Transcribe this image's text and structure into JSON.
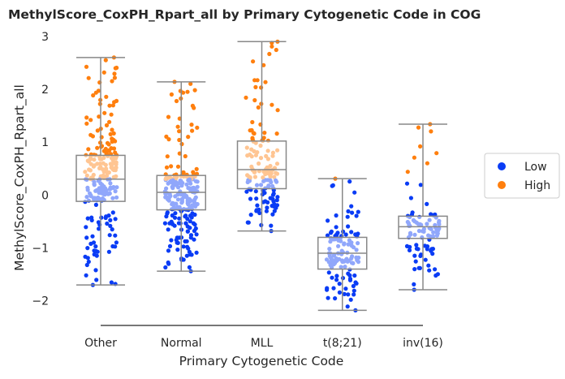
{
  "chart_data": {
    "type": "box+strip",
    "title": "MethylScore_CoxPH_Rpart_all by Primary Cytogenetic Code in COG",
    "xlabel": "Primary Cytogenetic Code",
    "ylabel": "MethylScore_CoxPH_Rpart_all",
    "categories": [
      "Other",
      "Normal",
      "MLL",
      "t(8;21)",
      "inv(16)"
    ],
    "ylim": [
      -2.45,
      3.05
    ],
    "yticks": [
      -2,
      -1,
      0,
      1,
      2,
      3
    ],
    "grid": false,
    "legend_position": "right",
    "legend": [
      {
        "label": "Low",
        "color": "#0a3cf5"
      },
      {
        "label": "High",
        "color": "#ff7f0e"
      }
    ],
    "box_color": "#888888",
    "boxes": [
      {
        "category": "Other",
        "whisker_low": -1.7,
        "q1": -0.12,
        "median": 0.3,
        "q3": 0.75,
        "whisker_high": 2.6
      },
      {
        "category": "Normal",
        "whisker_low": -1.44,
        "q1": -0.28,
        "median": 0.05,
        "q3": 0.37,
        "whisker_high": 2.14
      },
      {
        "category": "MLL",
        "whisker_low": -0.68,
        "q1": 0.12,
        "median": 0.48,
        "q3": 1.02,
        "whisker_high": 2.9
      },
      {
        "category": "t(8;21)",
        "whisker_low": -2.18,
        "q1": -1.4,
        "median": -1.1,
        "q3": -0.8,
        "whisker_high": 0.31
      },
      {
        "category": "inv(16)",
        "whisker_low": -1.79,
        "q1": -0.82,
        "median": -0.6,
        "q3": -0.4,
        "whisker_high": 1.34
      }
    ],
    "points_threshold": 0.3,
    "points_spec": [
      {
        "category": "Other",
        "n": 230,
        "min": -1.7,
        "max": 2.6,
        "q1": -0.12,
        "median": 0.3,
        "q3": 0.75,
        "seed": 11
      },
      {
        "category": "Normal",
        "n": 230,
        "min": -1.44,
        "max": 2.14,
        "q1": -0.28,
        "median": 0.05,
        "q3": 0.37,
        "seed": 23
      },
      {
        "category": "MLL",
        "n": 140,
        "min": -0.68,
        "max": 2.9,
        "q1": 0.12,
        "median": 0.48,
        "q3": 1.02,
        "seed": 37
      },
      {
        "category": "t(8;21)",
        "n": 120,
        "min": -2.18,
        "max": 0.31,
        "q1": -1.4,
        "median": -1.1,
        "q3": -0.8,
        "seed": 41
      },
      {
        "category": "inv(16)",
        "n": 90,
        "min": -1.79,
        "max": 1.34,
        "q1": -0.82,
        "median": -0.6,
        "q3": -0.4,
        "seed": 53
      }
    ]
  }
}
